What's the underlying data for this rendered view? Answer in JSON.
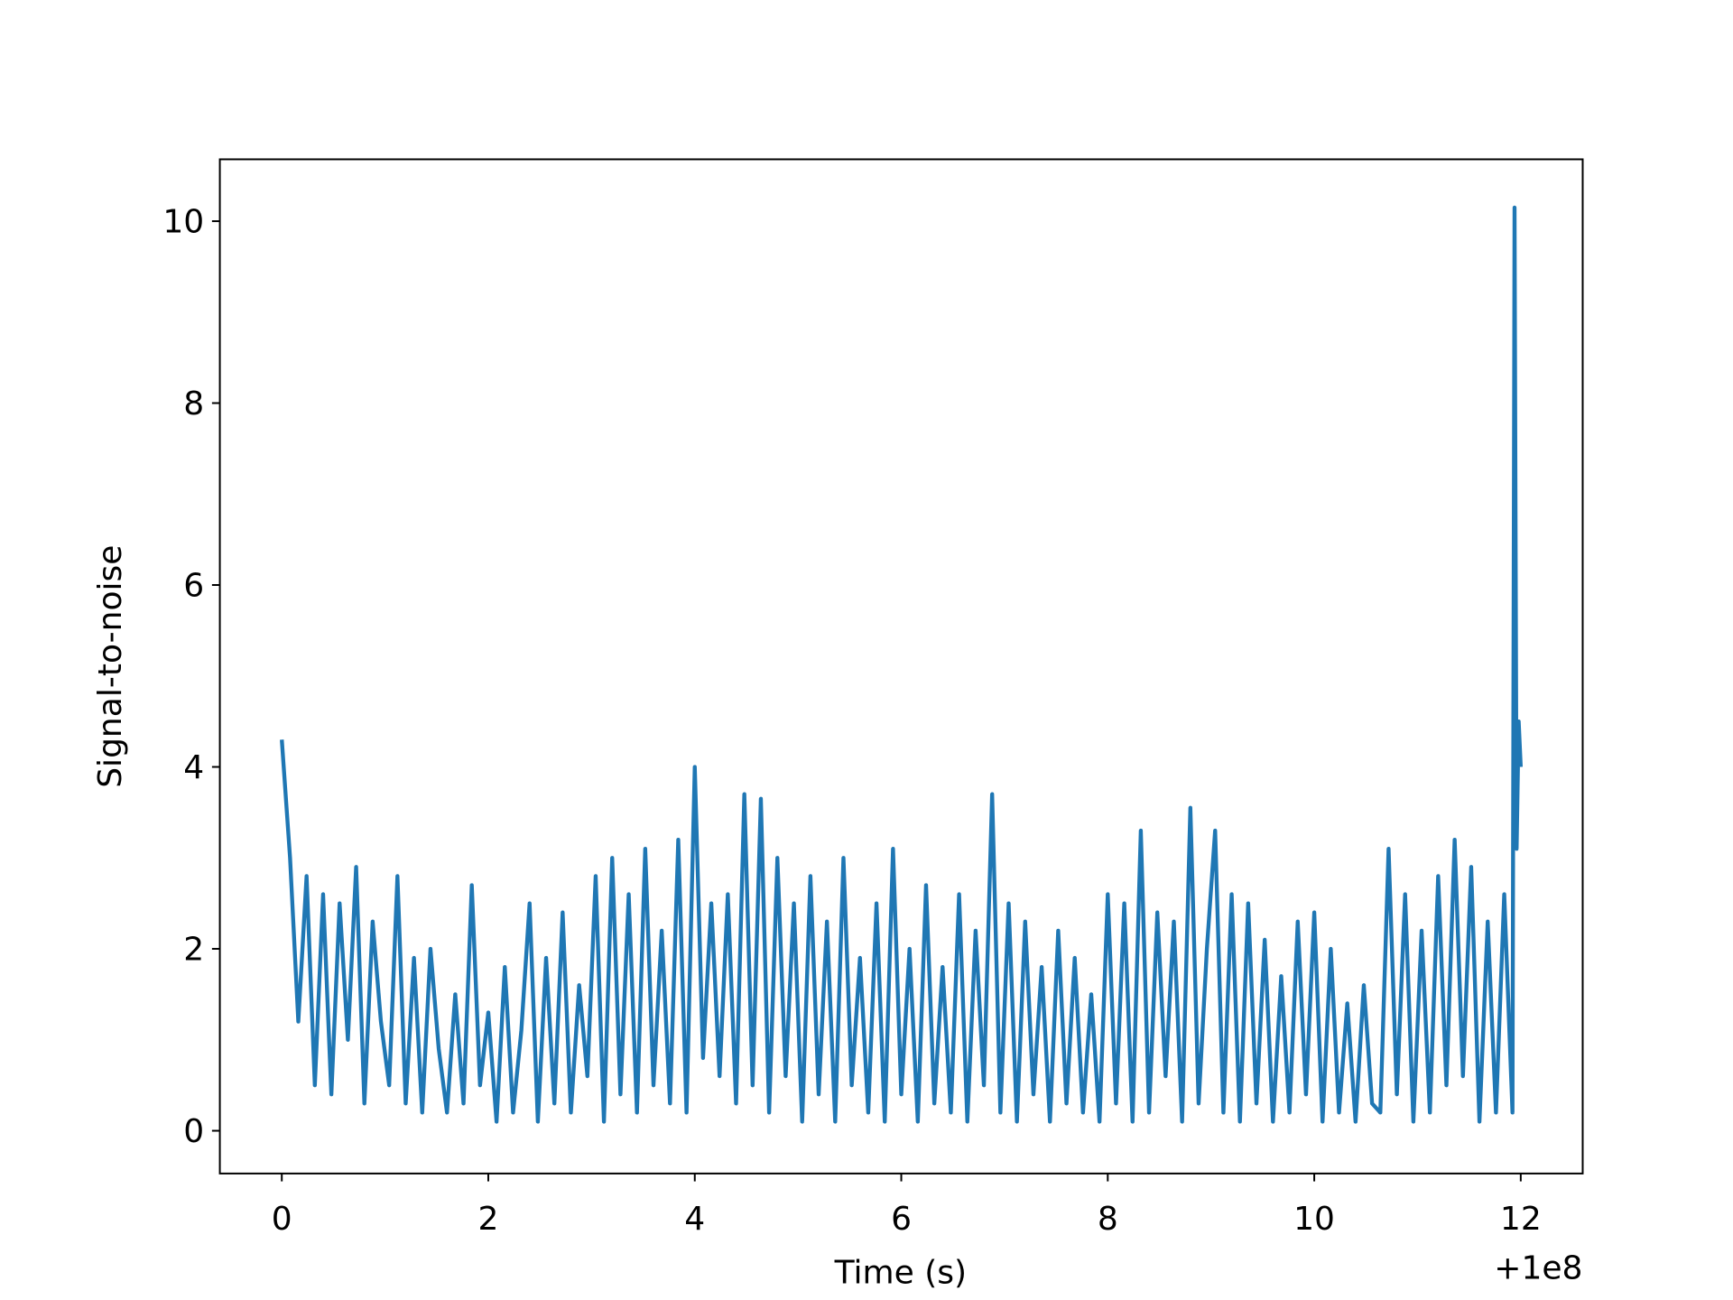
{
  "chart_data": {
    "type": "line",
    "xlabel": "Time (s)",
    "ylabel": "Signal-to-noise",
    "x_offset_label": "+1e8",
    "xlim": [
      -0.6,
      12.6
    ],
    "ylim": [
      -0.47,
      10.68
    ],
    "xticks": [
      0,
      2,
      4,
      6,
      8,
      10,
      12
    ],
    "yticks": [
      0,
      2,
      4,
      6,
      8,
      10
    ],
    "series": [
      {
        "color": "#1f77b4",
        "x": [
          0,
          0.08,
          0.16,
          0.24,
          0.32,
          0.4,
          0.48,
          0.56,
          0.64,
          0.72,
          0.8,
          0.88,
          0.96,
          1.04,
          1.12,
          1.2,
          1.28,
          1.36,
          1.44,
          1.52,
          1.6,
          1.68,
          1.76,
          1.84,
          1.92,
          2,
          2.08,
          2.16,
          2.24,
          2.32,
          2.4,
          2.48,
          2.56,
          2.64,
          2.72,
          2.8,
          2.88,
          2.96,
          3.04,
          3.12,
          3.2,
          3.28,
          3.36,
          3.44,
          3.52,
          3.6,
          3.68,
          3.76,
          3.84,
          3.92,
          4,
          4.08,
          4.16,
          4.24,
          4.32,
          4.4,
          4.48,
          4.56,
          4.64,
          4.72,
          4.8,
          4.88,
          4.96,
          5.04,
          5.12,
          5.2,
          5.28,
          5.36,
          5.44,
          5.52,
          5.6,
          5.68,
          5.76,
          5.84,
          5.92,
          6,
          6.08,
          6.16,
          6.24,
          6.32,
          6.4,
          6.48,
          6.56,
          6.64,
          6.72,
          6.8,
          6.88,
          6.96,
          7.04,
          7.12,
          7.2,
          7.28,
          7.36,
          7.44,
          7.52,
          7.6,
          7.68,
          7.76,
          7.84,
          7.92,
          8,
          8.08,
          8.16,
          8.24,
          8.32,
          8.4,
          8.48,
          8.56,
          8.64,
          8.72,
          8.8,
          8.88,
          8.96,
          9.04,
          9.12,
          9.2,
          9.28,
          9.36,
          9.44,
          9.52,
          9.6,
          9.68,
          9.76,
          9.84,
          9.92,
          10,
          10.08,
          10.16,
          10.24,
          10.32,
          10.4,
          10.48,
          10.56,
          10.64,
          10.72,
          10.8,
          10.88,
          10.96,
          11.04,
          11.12,
          11.2,
          11.28,
          11.36,
          11.44,
          11.52,
          11.6,
          11.68,
          11.76,
          11.84,
          11.92,
          11.94,
          11.96,
          11.98,
          12
        ],
        "values": [
          4.3,
          3.0,
          1.2,
          2.8,
          0.5,
          2.6,
          0.4,
          2.5,
          1.0,
          2.9,
          0.3,
          2.3,
          1.2,
          0.5,
          2.8,
          0.3,
          1.9,
          0.2,
          2.0,
          0.9,
          0.2,
          1.5,
          0.3,
          2.7,
          0.5,
          1.3,
          0.1,
          1.8,
          0.2,
          1.1,
          2.5,
          0.1,
          1.9,
          0.3,
          2.4,
          0.2,
          1.6,
          0.6,
          2.8,
          0.1,
          3.0,
          0.4,
          2.6,
          0.2,
          3.1,
          0.5,
          2.2,
          0.3,
          3.2,
          0.2,
          4.0,
          0.8,
          2.5,
          0.6,
          2.6,
          0.3,
          3.7,
          0.5,
          3.65,
          0.2,
          3.0,
          0.6,
          2.5,
          0.1,
          2.8,
          0.4,
          2.3,
          0.1,
          3.0,
          0.5,
          1.9,
          0.2,
          2.5,
          0.1,
          3.1,
          0.4,
          2.0,
          0.1,
          2.7,
          0.3,
          1.8,
          0.2,
          2.6,
          0.1,
          2.2,
          0.5,
          3.7,
          0.2,
          2.5,
          0.1,
          2.3,
          0.4,
          1.8,
          0.1,
          2.2,
          0.3,
          1.9,
          0.2,
          1.5,
          0.1,
          2.6,
          0.3,
          2.5,
          0.1,
          3.3,
          0.2,
          2.4,
          0.6,
          2.3,
          0.1,
          3.55,
          0.3,
          2.0,
          3.3,
          0.2,
          2.6,
          0.1,
          2.5,
          0.3,
          2.1,
          0.1,
          1.7,
          0.2,
          2.3,
          0.4,
          2.4,
          0.1,
          2.0,
          0.2,
          1.4,
          0.1,
          1.6,
          0.3,
          0.2,
          3.1,
          0.4,
          2.6,
          0.1,
          2.2,
          0.2,
          2.8,
          0.5,
          3.2,
          0.6,
          2.9,
          0.1,
          2.3,
          0.2,
          2.6,
          0.2,
          10.15,
          3.1,
          4.5,
          4.0
        ]
      }
    ]
  }
}
